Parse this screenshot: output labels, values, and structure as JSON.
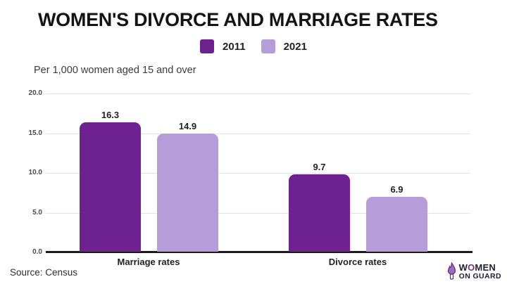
{
  "title": "WOMEN'S DIVORCE AND MARRIAGE RATES",
  "subtitle": "Per 1,000 women aged 15 and over",
  "source": "Source: Census",
  "legend": [
    {
      "label": "2011",
      "color": "#6e2191"
    },
    {
      "label": "2021",
      "color": "#b59dd9"
    }
  ],
  "logo": {
    "line1_pre": "W",
    "line1_o": "O",
    "line1_post": "MEN",
    "line2": "ON GUARD",
    "icon": "women-on-guard-hand-icon",
    "accent_color": "#7b2d8e"
  },
  "colors": {
    "series_2011": "#6e2191",
    "series_2021": "#b59dd9",
    "axis": "#1b1b1b",
    "gridline": "#e3e3e3",
    "text_dark": "#1f1f1f"
  },
  "chart_data": {
    "type": "bar",
    "title": "WOMEN'S DIVORCE AND MARRIAGE RATES",
    "subtitle": "Per 1,000 women aged 15 and over",
    "categories": [
      "Marriage rates",
      "Divorce rates"
    ],
    "series": [
      {
        "name": "2011",
        "color": "#6e2191",
        "values": [
          16.3,
          9.7
        ]
      },
      {
        "name": "2021",
        "color": "#b59dd9",
        "values": [
          14.9,
          6.9
        ]
      }
    ],
    "xlabel": "",
    "ylabel": "Per 1,000 women aged 15 and over",
    "ylim": [
      0,
      20
    ],
    "yticks": [
      0.0,
      5.0,
      10.0,
      15.0,
      20.0
    ],
    "ytick_labels": [
      "0.0",
      "5.0",
      "10.0",
      "15.0",
      "20.0"
    ],
    "grid": true,
    "legend_position": "top",
    "value_labels": true
  }
}
